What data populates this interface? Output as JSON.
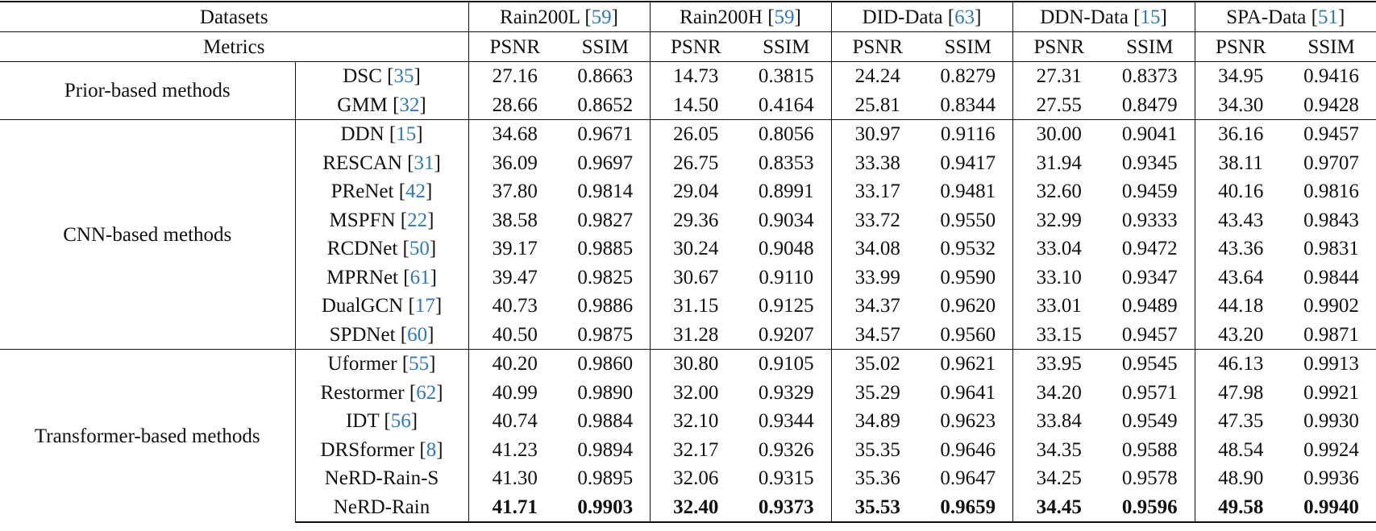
{
  "header": {
    "datasets_label": "Datasets",
    "metrics_label": "Metrics",
    "datasets": [
      {
        "name": "Rain200L",
        "ref": "59"
      },
      {
        "name": "Rain200H",
        "ref": "59"
      },
      {
        "name": "DID-Data",
        "ref": "63"
      },
      {
        "name": "DDN-Data",
        "ref": "15"
      },
      {
        "name": "SPA-Data",
        "ref": "51"
      }
    ],
    "metric_names": [
      "PSNR",
      "SSIM"
    ]
  },
  "groups": [
    {
      "label": "Prior-based methods",
      "rows": [
        {
          "method": "DSC",
          "ref": "35",
          "values": [
            "27.16",
            "0.8663",
            "14.73",
            "0.3815",
            "24.24",
            "0.8279",
            "27.31",
            "0.8373",
            "34.95",
            "0.9416"
          ]
        },
        {
          "method": "GMM",
          "ref": "32",
          "values": [
            "28.66",
            "0.8652",
            "14.50",
            "0.4164",
            "25.81",
            "0.8344",
            "27.55",
            "0.8479",
            "34.30",
            "0.9428"
          ]
        }
      ]
    },
    {
      "label": "CNN-based methods",
      "rows": [
        {
          "method": "DDN",
          "ref": "15",
          "values": [
            "34.68",
            "0.9671",
            "26.05",
            "0.8056",
            "30.97",
            "0.9116",
            "30.00",
            "0.9041",
            "36.16",
            "0.9457"
          ]
        },
        {
          "method": "RESCAN",
          "ref": "31",
          "values": [
            "36.09",
            "0.9697",
            "26.75",
            "0.8353",
            "33.38",
            "0.9417",
            "31.94",
            "0.9345",
            "38.11",
            "0.9707"
          ]
        },
        {
          "method": "PReNet",
          "ref": "42",
          "values": [
            "37.80",
            "0.9814",
            "29.04",
            "0.8991",
            "33.17",
            "0.9481",
            "32.60",
            "0.9459",
            "40.16",
            "0.9816"
          ]
        },
        {
          "method": "MSPFN",
          "ref": "22",
          "values": [
            "38.58",
            "0.9827",
            "29.36",
            "0.9034",
            "33.72",
            "0.9550",
            "32.99",
            "0.9333",
            "43.43",
            "0.9843"
          ]
        },
        {
          "method": "RCDNet",
          "ref": "50",
          "values": [
            "39.17",
            "0.9885",
            "30.24",
            "0.9048",
            "34.08",
            "0.9532",
            "33.04",
            "0.9472",
            "43.36",
            "0.9831"
          ]
        },
        {
          "method": "MPRNet",
          "ref": "61",
          "values": [
            "39.47",
            "0.9825",
            "30.67",
            "0.9110",
            "33.99",
            "0.9590",
            "33.10",
            "0.9347",
            "43.64",
            "0.9844"
          ]
        },
        {
          "method": "DualGCN",
          "ref": "17",
          "values": [
            "40.73",
            "0.9886",
            "31.15",
            "0.9125",
            "34.37",
            "0.9620",
            "33.01",
            "0.9489",
            "44.18",
            "0.9902"
          ]
        },
        {
          "method": "SPDNet",
          "ref": "60",
          "values": [
            "40.50",
            "0.9875",
            "31.28",
            "0.9207",
            "34.57",
            "0.9560",
            "33.15",
            "0.9457",
            "43.20",
            "0.9871"
          ]
        }
      ]
    },
    {
      "label": "Transformer-based methods",
      "rows": [
        {
          "method": "Uformer",
          "ref": "55",
          "values": [
            "40.20",
            "0.9860",
            "30.80",
            "0.9105",
            "35.02",
            "0.9621",
            "33.95",
            "0.9545",
            "46.13",
            "0.9913"
          ]
        },
        {
          "method": "Restormer",
          "ref": "62",
          "values": [
            "40.99",
            "0.9890",
            "32.00",
            "0.9329",
            "35.29",
            "0.9641",
            "34.20",
            "0.9571",
            "47.98",
            "0.9921"
          ]
        },
        {
          "method": "IDT",
          "ref": "56",
          "values": [
            "40.74",
            "0.9884",
            "32.10",
            "0.9344",
            "34.89",
            "0.9623",
            "33.84",
            "0.9549",
            "47.35",
            "0.9930"
          ]
        },
        {
          "method": "DRSformer",
          "ref": "8",
          "values": [
            "41.23",
            "0.9894",
            "32.17",
            "0.9326",
            "35.35",
            "0.9646",
            "34.35",
            "0.9588",
            "48.54",
            "0.9924"
          ]
        },
        {
          "method": "NeRD-Rain-S",
          "ref": "",
          "values": [
            "41.30",
            "0.9895",
            "32.06",
            "0.9315",
            "35.36",
            "0.9647",
            "34.25",
            "0.9578",
            "48.90",
            "0.9936"
          ]
        },
        {
          "method": "NeRD-Rain",
          "ref": "",
          "bold": true,
          "values": [
            "41.71",
            "0.9903",
            "32.40",
            "0.9373",
            "35.53",
            "0.9659",
            "34.45",
            "0.9596",
            "49.58",
            "0.9940"
          ]
        }
      ]
    }
  ],
  "colors": {
    "citation": "#2e78bd",
    "text": "#111111"
  }
}
